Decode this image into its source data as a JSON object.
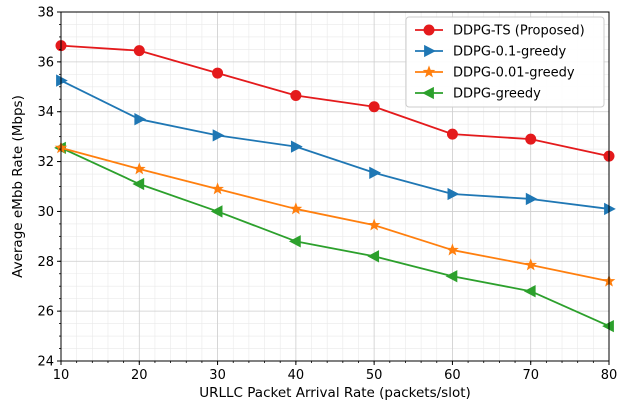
{
  "chart_data": {
    "type": "line",
    "xlabel": "URLLC Packet Arrival Rate (packets/slot)",
    "ylabel": "Average eMbb Rate (Mbps)",
    "xlim": [
      10,
      80
    ],
    "ylim": [
      24,
      38
    ],
    "x_ticks": [
      10,
      20,
      30,
      40,
      50,
      60,
      70,
      80
    ],
    "y_ticks": [
      24,
      26,
      28,
      30,
      32,
      34,
      36,
      38
    ],
    "grid": true,
    "legend_position": "top-right",
    "x": [
      10,
      20,
      30,
      40,
      50,
      60,
      70,
      80
    ],
    "series": [
      {
        "name": "DDPG-TS (Proposed)",
        "color": "#e41a1c",
        "marker": "circle",
        "values": [
          36.65,
          36.45,
          35.55,
          34.65,
          34.2,
          33.1,
          32.9,
          32.22
        ]
      },
      {
        "name": "DDPG-0.1-greedy",
        "color": "#1f77b4",
        "marker": "triangle-right",
        "values": [
          35.25,
          33.7,
          33.05,
          32.6,
          31.55,
          30.7,
          30.5,
          30.1
        ]
      },
      {
        "name": "DDPG-0.01-greedy",
        "color": "#ff7f0e",
        "marker": "star",
        "values": [
          32.55,
          31.7,
          30.9,
          30.1,
          29.45,
          28.45,
          27.85,
          27.2
        ]
      },
      {
        "name": "DDPG-greedy",
        "color": "#2ca02c",
        "marker": "triangle-left",
        "values": [
          32.55,
          31.1,
          30.0,
          28.8,
          28.2,
          27.4,
          26.8,
          25.4
        ]
      }
    ]
  }
}
